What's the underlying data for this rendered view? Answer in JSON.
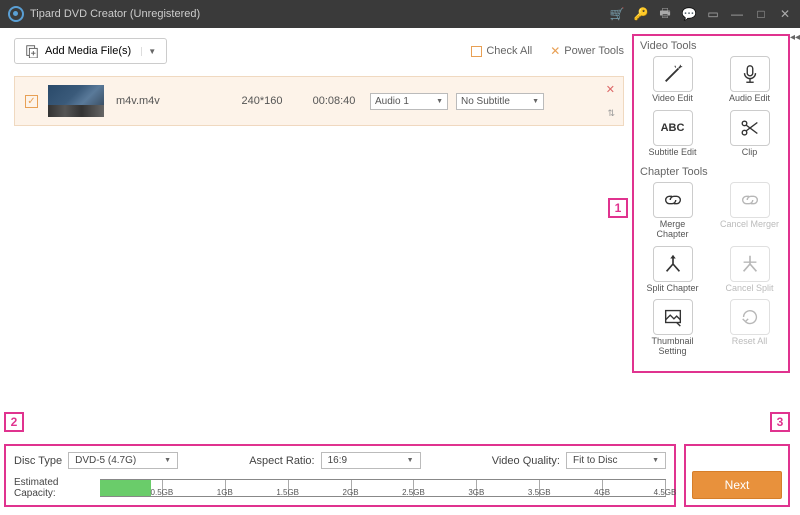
{
  "titlebar": {
    "app_title": "Tipard DVD Creator (Unregistered)"
  },
  "toolbar": {
    "add_media": "Add Media File(s)",
    "check_all": "Check All",
    "power_tools": "Power Tools"
  },
  "media": {
    "filename": "m4v.m4v",
    "resolution": "240*160",
    "duration": "00:08:40",
    "audio_selected": "Audio 1",
    "subtitle_selected": "No Subtitle",
    "checked": true
  },
  "video_tools": {
    "heading": "Video Tools",
    "items": [
      "Video Edit",
      "Audio Edit",
      "Subtitle Edit",
      "Clip"
    ]
  },
  "chapter_tools": {
    "heading": "Chapter Tools",
    "items": [
      "Merge Chapter",
      "Cancel Merger",
      "Split Chapter",
      "Cancel Split",
      "Thumbnail Setting",
      "Reset All"
    ]
  },
  "settings": {
    "disc_type_label": "Disc Type",
    "disc_type": "DVD-5 (4.7G)",
    "aspect_label": "Aspect Ratio:",
    "aspect": "16:9",
    "quality_label": "Video Quality:",
    "quality": "Fit to Disc"
  },
  "capacity": {
    "label": "Estimated Capacity:",
    "fill_percent": 9,
    "ticks": [
      "0.5GB",
      "1GB",
      "1.5GB",
      "2GB",
      "2.5GB",
      "3GB",
      "3.5GB",
      "4GB",
      "4.5GB"
    ],
    "fill_color": "#6acc6a"
  },
  "next_button": "Next",
  "annotations": {
    "a1": "1",
    "a2": "2",
    "a3": "3"
  },
  "colors": {
    "annotation": "#e0338f",
    "accent": "#e8913c",
    "row_bg": "#fdf3e9"
  }
}
